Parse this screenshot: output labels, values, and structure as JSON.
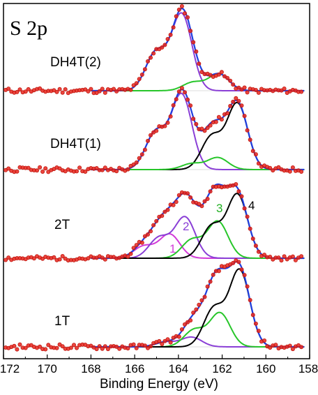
{
  "chart_data": {
    "type": "line",
    "title": "S 2p",
    "xlabel": "Binding Energy (eV)",
    "ylabel": "",
    "xlim": [
      172,
      158
    ],
    "x_reversed": true,
    "x_ticks": [
      172,
      170,
      168,
      166,
      164,
      162,
      160,
      158
    ],
    "grid": false,
    "colors": {
      "data": "#e8261d",
      "data_edge": "#c0170f",
      "envelope": "#1f3fe0",
      "doublet_violet": "#8a3fd6",
      "doublet_green": "#27c62a",
      "doublet_black": "#000000",
      "doublet_magenta": "#d23ad8",
      "label_green": "#22b022"
    },
    "peak_shape": {
      "doublet_split_eV": 1.18,
      "ratio_p1_2_to_p3_2": 0.5,
      "fwhm_eV": 1.1
    },
    "panels": [
      {
        "name": "DH4T(2)",
        "components": [
          {
            "color_key": "doublet_violet",
            "center_eV": 163.85,
            "amplitude": 1.0
          },
          {
            "color_key": "doublet_green",
            "center_eV": 162.15,
            "amplitude": 0.22
          }
        ]
      },
      {
        "name": "DH4T(1)",
        "components": [
          {
            "color_key": "doublet_violet",
            "center_eV": 163.85,
            "amplitude": 1.0
          },
          {
            "color_key": "doublet_black",
            "center_eV": 161.3,
            "amplitude": 0.88
          },
          {
            "color_key": "doublet_green",
            "center_eV": 162.2,
            "amplitude": 0.16
          }
        ]
      },
      {
        "name": "2T",
        "components": [
          {
            "color_key": "doublet_magenta",
            "center_eV": 164.4,
            "amplitude": 0.34,
            "label": "1"
          },
          {
            "color_key": "doublet_violet",
            "center_eV": 163.7,
            "amplitude": 0.58,
            "label": "2"
          },
          {
            "color_key": "doublet_green",
            "center_eV": 162.2,
            "amplitude": 0.52,
            "label": "3"
          },
          {
            "color_key": "doublet_black",
            "center_eV": 161.3,
            "amplitude": 0.9,
            "label": "4"
          }
        ]
      },
      {
        "name": "1T",
        "components": [
          {
            "color_key": "doublet_violet",
            "center_eV": 163.4,
            "amplitude": 0.12
          },
          {
            "color_key": "doublet_green",
            "center_eV": 162.1,
            "amplitude": 0.42
          },
          {
            "color_key": "doublet_black",
            "center_eV": 161.2,
            "amplitude": 0.95
          }
        ]
      }
    ]
  }
}
